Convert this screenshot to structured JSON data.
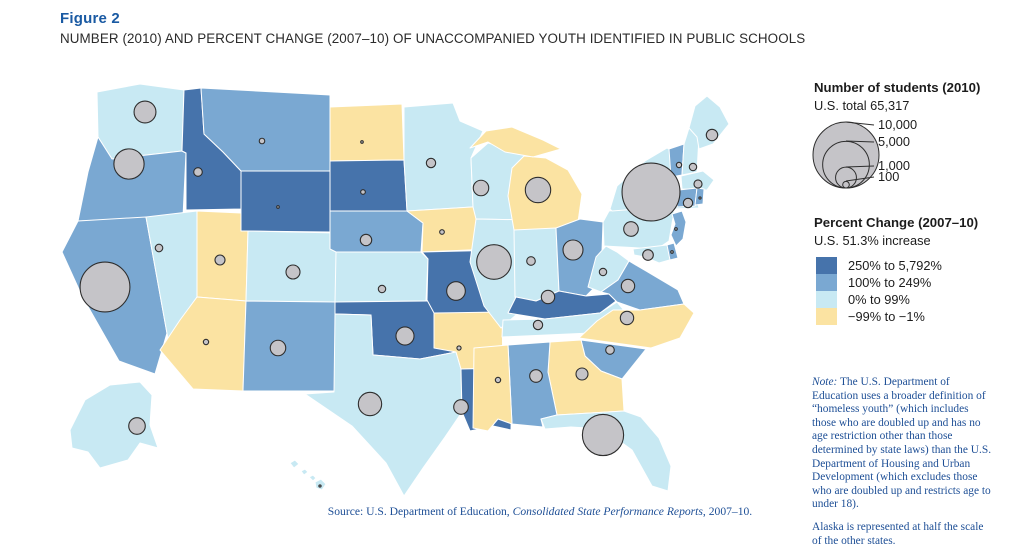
{
  "figure": {
    "label": "Figure 2",
    "title": "NUMBER (2010) AND PERCENT CHANGE (2007–10) OF UNACCOMPANIED YOUTH IDENTIFIED IN PUBLIC SCHOOLS"
  },
  "legend_size": {
    "heading": "Number of students (2010)",
    "subheading": "U.S. total 65,317",
    "circles": [
      {
        "label": "10,000",
        "value": 10000
      },
      {
        "label": "5,000",
        "value": 5000
      },
      {
        "label": "1,000",
        "value": 1000
      },
      {
        "label": "100",
        "value": 100
      }
    ]
  },
  "legend_color": {
    "heading": "Percent Change (2007–10)",
    "subheading": "U.S. 51.3% increase",
    "categories": [
      {
        "key": "increase_250_plus",
        "label": "250% to 5,792%",
        "color": "#4673ab"
      },
      {
        "key": "increase_100_249",
        "label": "100% to 249%",
        "color": "#7aa8d2"
      },
      {
        "key": "increase_0_99",
        "label": "0% to 99%",
        "color": "#c8e9f3"
      },
      {
        "key": "decrease",
        "label": "−99% to −1%",
        "color": "#fbe3a2"
      }
    ]
  },
  "notes": {
    "note_label": "Note:",
    "note_body": " The U.S. Department of Education uses a broader definition of “homeless youth” (which includes those who are doubled up and has no age restriction other than those determined by state laws) than the U.S. Department of Housing and Urban Development (which excludes those who are doubled up and restricts age to under 18).",
    "alaska": "Alaska is represented at half the scale of the other states."
  },
  "source": {
    "prefix": "Source: U.S. Department of Education, ",
    "italic": "Consolidated State Performance Reports",
    "suffix": ", 2007–10."
  },
  "colors": {
    "figure_label": "#1a5aa3",
    "title_text": "#2b2b2b",
    "note_text": "#1e4f96",
    "circle_fill": "#c5c4c8",
    "circle_stroke": "#2e2e2e",
    "state_border": "#ffffff"
  },
  "chart_data": {
    "type": "map",
    "subtype": "choropleth_with_proportional_symbols",
    "title": "Number (2010) and percent change (2007–10) of unaccompanied youth identified in public schools",
    "us_total_students_2010": 65317,
    "us_percent_change_2007_10": "51.3% increase",
    "size_scale_values": [
      10000,
      5000,
      1000,
      100
    ],
    "states": [
      {
        "abbr": "WA",
        "name": "Washington",
        "change": "increase_0_99",
        "students_2010_approx": 1100
      },
      {
        "abbr": "OR",
        "name": "Oregon",
        "change": "increase_100_249",
        "students_2010_approx": 2100
      },
      {
        "abbr": "CA",
        "name": "California",
        "change": "increase_100_249",
        "students_2010_approx": 5700
      },
      {
        "abbr": "NV",
        "name": "Nevada",
        "change": "increase_0_99",
        "students_2010_approx": 130
      },
      {
        "abbr": "ID",
        "name": "Idaho",
        "change": "increase_250_plus",
        "students_2010_approx": 170
      },
      {
        "abbr": "MT",
        "name": "Montana",
        "change": "increase_100_249",
        "students_2010_approx": 70
      },
      {
        "abbr": "WY",
        "name": "Wyoming",
        "change": "increase_250_plus",
        "students_2010_approx": 15
      },
      {
        "abbr": "UT",
        "name": "Utah",
        "change": "decrease",
        "students_2010_approx": 230
      },
      {
        "abbr": "CO",
        "name": "Colorado",
        "change": "increase_0_99",
        "students_2010_approx": 450
      },
      {
        "abbr": "AZ",
        "name": "Arizona",
        "change": "decrease",
        "students_2010_approx": 65
      },
      {
        "abbr": "NM",
        "name": "New Mexico",
        "change": "increase_100_249",
        "students_2010_approx": 550
      },
      {
        "abbr": "ND",
        "name": "North Dakota",
        "change": "decrease",
        "students_2010_approx": 15
      },
      {
        "abbr": "SD",
        "name": "South Dakota",
        "change": "increase_250_plus",
        "students_2010_approx": 50
      },
      {
        "abbr": "NE",
        "name": "Nebraska",
        "change": "increase_100_249",
        "students_2010_approx": 300
      },
      {
        "abbr": "KS",
        "name": "Kansas",
        "change": "increase_0_99",
        "students_2010_approx": 125
      },
      {
        "abbr": "OK",
        "name": "Oklahoma",
        "change": "increase_250_plus",
        "students_2010_approx": 750
      },
      {
        "abbr": "TX",
        "name": "Texas",
        "change": "increase_0_99",
        "students_2010_approx": 1250
      },
      {
        "abbr": "MN",
        "name": "Minnesota",
        "change": "increase_0_99",
        "students_2010_approx": 200
      },
      {
        "abbr": "IA",
        "name": "Iowa",
        "change": "decrease",
        "students_2010_approx": 50
      },
      {
        "abbr": "MO",
        "name": "Missouri",
        "change": "increase_250_plus",
        "students_2010_approx": 800
      },
      {
        "abbr": "AR",
        "name": "Arkansas",
        "change": "decrease",
        "students_2010_approx": 40
      },
      {
        "abbr": "LA",
        "name": "Louisiana",
        "change": "increase_250_plus",
        "students_2010_approx": 490
      },
      {
        "abbr": "WI",
        "name": "Wisconsin",
        "change": "increase_0_99",
        "students_2010_approx": 550
      },
      {
        "abbr": "IL",
        "name": "Illinois",
        "change": "increase_0_99",
        "students_2010_approx": 2750
      },
      {
        "abbr": "MI",
        "name": "Michigan",
        "change": "decrease",
        "students_2010_approx": 1480
      },
      {
        "abbr": "IN",
        "name": "Indiana",
        "change": "increase_0_99",
        "students_2010_approx": 170
      },
      {
        "abbr": "OH",
        "name": "Ohio",
        "change": "increase_100_249",
        "students_2010_approx": 920
      },
      {
        "abbr": "KY",
        "name": "Kentucky",
        "change": "increase_250_plus",
        "students_2010_approx": 410
      },
      {
        "abbr": "TN",
        "name": "Tennessee",
        "change": "increase_0_99",
        "students_2010_approx": 200
      },
      {
        "abbr": "MS",
        "name": "Mississippi",
        "change": "decrease",
        "students_2010_approx": 65
      },
      {
        "abbr": "AL",
        "name": "Alabama",
        "change": "increase_100_249",
        "students_2010_approx": 365
      },
      {
        "abbr": "GA",
        "name": "Georgia",
        "change": "decrease",
        "students_2010_approx": 330
      },
      {
        "abbr": "SC",
        "name": "South Carolina",
        "change": "increase_100_249",
        "students_2010_approx": 170
      },
      {
        "abbr": "NC",
        "name": "North Carolina",
        "change": "decrease",
        "students_2010_approx": 410
      },
      {
        "abbr": "FL",
        "name": "Florida",
        "change": "increase_0_99",
        "students_2010_approx": 3900
      },
      {
        "abbr": "VA",
        "name": "Virginia",
        "change": "increase_100_249",
        "students_2010_approx": 410
      },
      {
        "abbr": "WV",
        "name": "West Virginia",
        "change": "increase_0_99",
        "students_2010_approx": 125
      },
      {
        "abbr": "MD",
        "name": "Maryland",
        "change": "increase_0_99",
        "students_2010_approx": 260
      },
      {
        "abbr": "DE",
        "name": "Delaware",
        "change": "increase_100_249",
        "students_2010_approx": 15
      },
      {
        "abbr": "PA",
        "name": "Pennsylvania",
        "change": "increase_0_99",
        "students_2010_approx": 490
      },
      {
        "abbr": "NJ",
        "name": "New Jersey",
        "change": "increase_100_249",
        "students_2010_approx": 15
      },
      {
        "abbr": "NY",
        "name": "New York",
        "change": "increase_0_99",
        "students_2010_approx": 7700
      },
      {
        "abbr": "CT",
        "name": "Connecticut",
        "change": "increase_100_249",
        "students_2010_approx": 200
      },
      {
        "abbr": "RI",
        "name": "Rhode Island",
        "change": "increase_100_249",
        "students_2010_approx": 10
      },
      {
        "abbr": "MA",
        "name": "Massachusetts",
        "change": "increase_0_99",
        "students_2010_approx": 150
      },
      {
        "abbr": "VT",
        "name": "Vermont",
        "change": "increase_100_249",
        "students_2010_approx": 65
      },
      {
        "abbr": "NH",
        "name": "New Hampshire",
        "change": "increase_0_99",
        "students_2010_approx": 125
      },
      {
        "abbr": "ME",
        "name": "Maine",
        "change": "increase_0_99",
        "students_2010_approx": 300
      },
      {
        "abbr": "AK",
        "name": "Alaska",
        "change": "increase_0_99",
        "students_2010_approx": 630
      },
      {
        "abbr": "HI",
        "name": "Hawaii",
        "change": "increase_0_99",
        "students_2010_approx": 10
      }
    ]
  }
}
